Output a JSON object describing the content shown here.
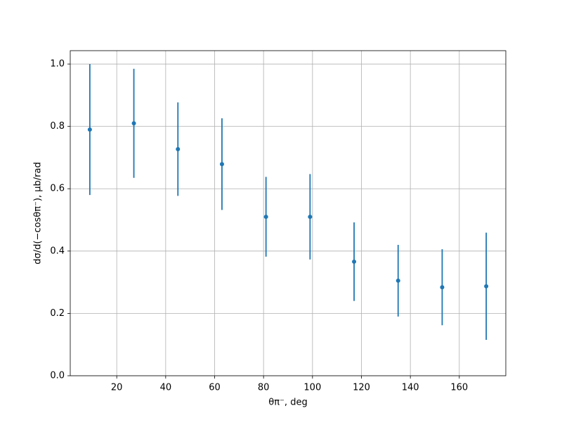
{
  "chart_data": {
    "type": "errorbar",
    "xlabel": "θπ⁻, deg",
    "ylabel": "dσ/d(−cosθπ⁻), μb/rad",
    "series": [
      {
        "color": "#1f77b4",
        "x": [
          9,
          27,
          45,
          63,
          81,
          99,
          117,
          135,
          153,
          171
        ],
        "values": [
          0.79,
          0.81,
          0.727,
          0.679,
          0.51,
          0.51,
          0.366,
          0.305,
          0.284,
          0.287
        ],
        "errors": [
          0.21,
          0.175,
          0.15,
          0.147,
          0.128,
          0.137,
          0.126,
          0.115,
          0.122,
          0.172
        ]
      }
    ],
    "xlim": [
      1,
      179
    ],
    "xticks": [
      20,
      40,
      60,
      80,
      100,
      120,
      140,
      160
    ],
    "ylim": [
      0,
      1.043
    ],
    "yticks": [
      {
        "value": 0,
        "label": "0.0"
      },
      0.2,
      0.4,
      0.6,
      0.8,
      {
        "value": 1,
        "label": "1.0"
      }
    ],
    "grid": true
  }
}
